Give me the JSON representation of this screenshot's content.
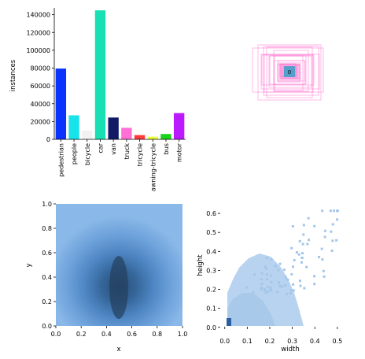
{
  "chart_data": [
    {
      "type": "bar",
      "ylabel": "instances",
      "categories": [
        "pedestrian",
        "people",
        "bicycle",
        "car",
        "van",
        "truck",
        "tricycle",
        "awning-tricycle",
        "bus",
        "motor"
      ],
      "values": [
        79500,
        27000,
        10000,
        144900,
        24500,
        13000,
        4800,
        3000,
        6000,
        29500
      ],
      "colors": [
        "#0a33ff",
        "#19e3ea",
        "#f2f2f2",
        "#19e0b4",
        "#121a66",
        "#ff6fd6",
        "#ff3b3b",
        "#e8ff3b",
        "#19d419",
        "#bb1aff"
      ],
      "yticks": [
        "0",
        "20000",
        "40000",
        "60000",
        "80000",
        "100000",
        "120000",
        "140000"
      ],
      "ylim": [
        0,
        145000
      ]
    },
    {
      "type": "other",
      "description_label": "0",
      "color": "#ff66cc"
    },
    {
      "type": "heatmap",
      "xlabel": "x",
      "ylabel": "y",
      "xlim": [
        0,
        1
      ],
      "ylim": [
        0,
        1
      ],
      "xticks": [
        "0.0",
        "0.2",
        "0.4",
        "0.6",
        "0.8",
        "1.0"
      ],
      "yticks": [
        "0.0",
        "0.2",
        "0.4",
        "0.6",
        "0.8",
        "1.0"
      ],
      "colormap": "Blues"
    },
    {
      "type": "heatmap",
      "xlabel": "width",
      "ylabel": "height",
      "xlim": [
        -0.02,
        0.56
      ],
      "ylim": [
        -0.03,
        0.65
      ],
      "xticks": [
        "0.0",
        "0.1",
        "0.2",
        "0.3",
        "0.4",
        "0.5"
      ],
      "yticks": [
        "0.0",
        "0.1",
        "0.2",
        "0.3",
        "0.4",
        "0.5",
        "0.6"
      ],
      "colormap": "Blues"
    }
  ]
}
